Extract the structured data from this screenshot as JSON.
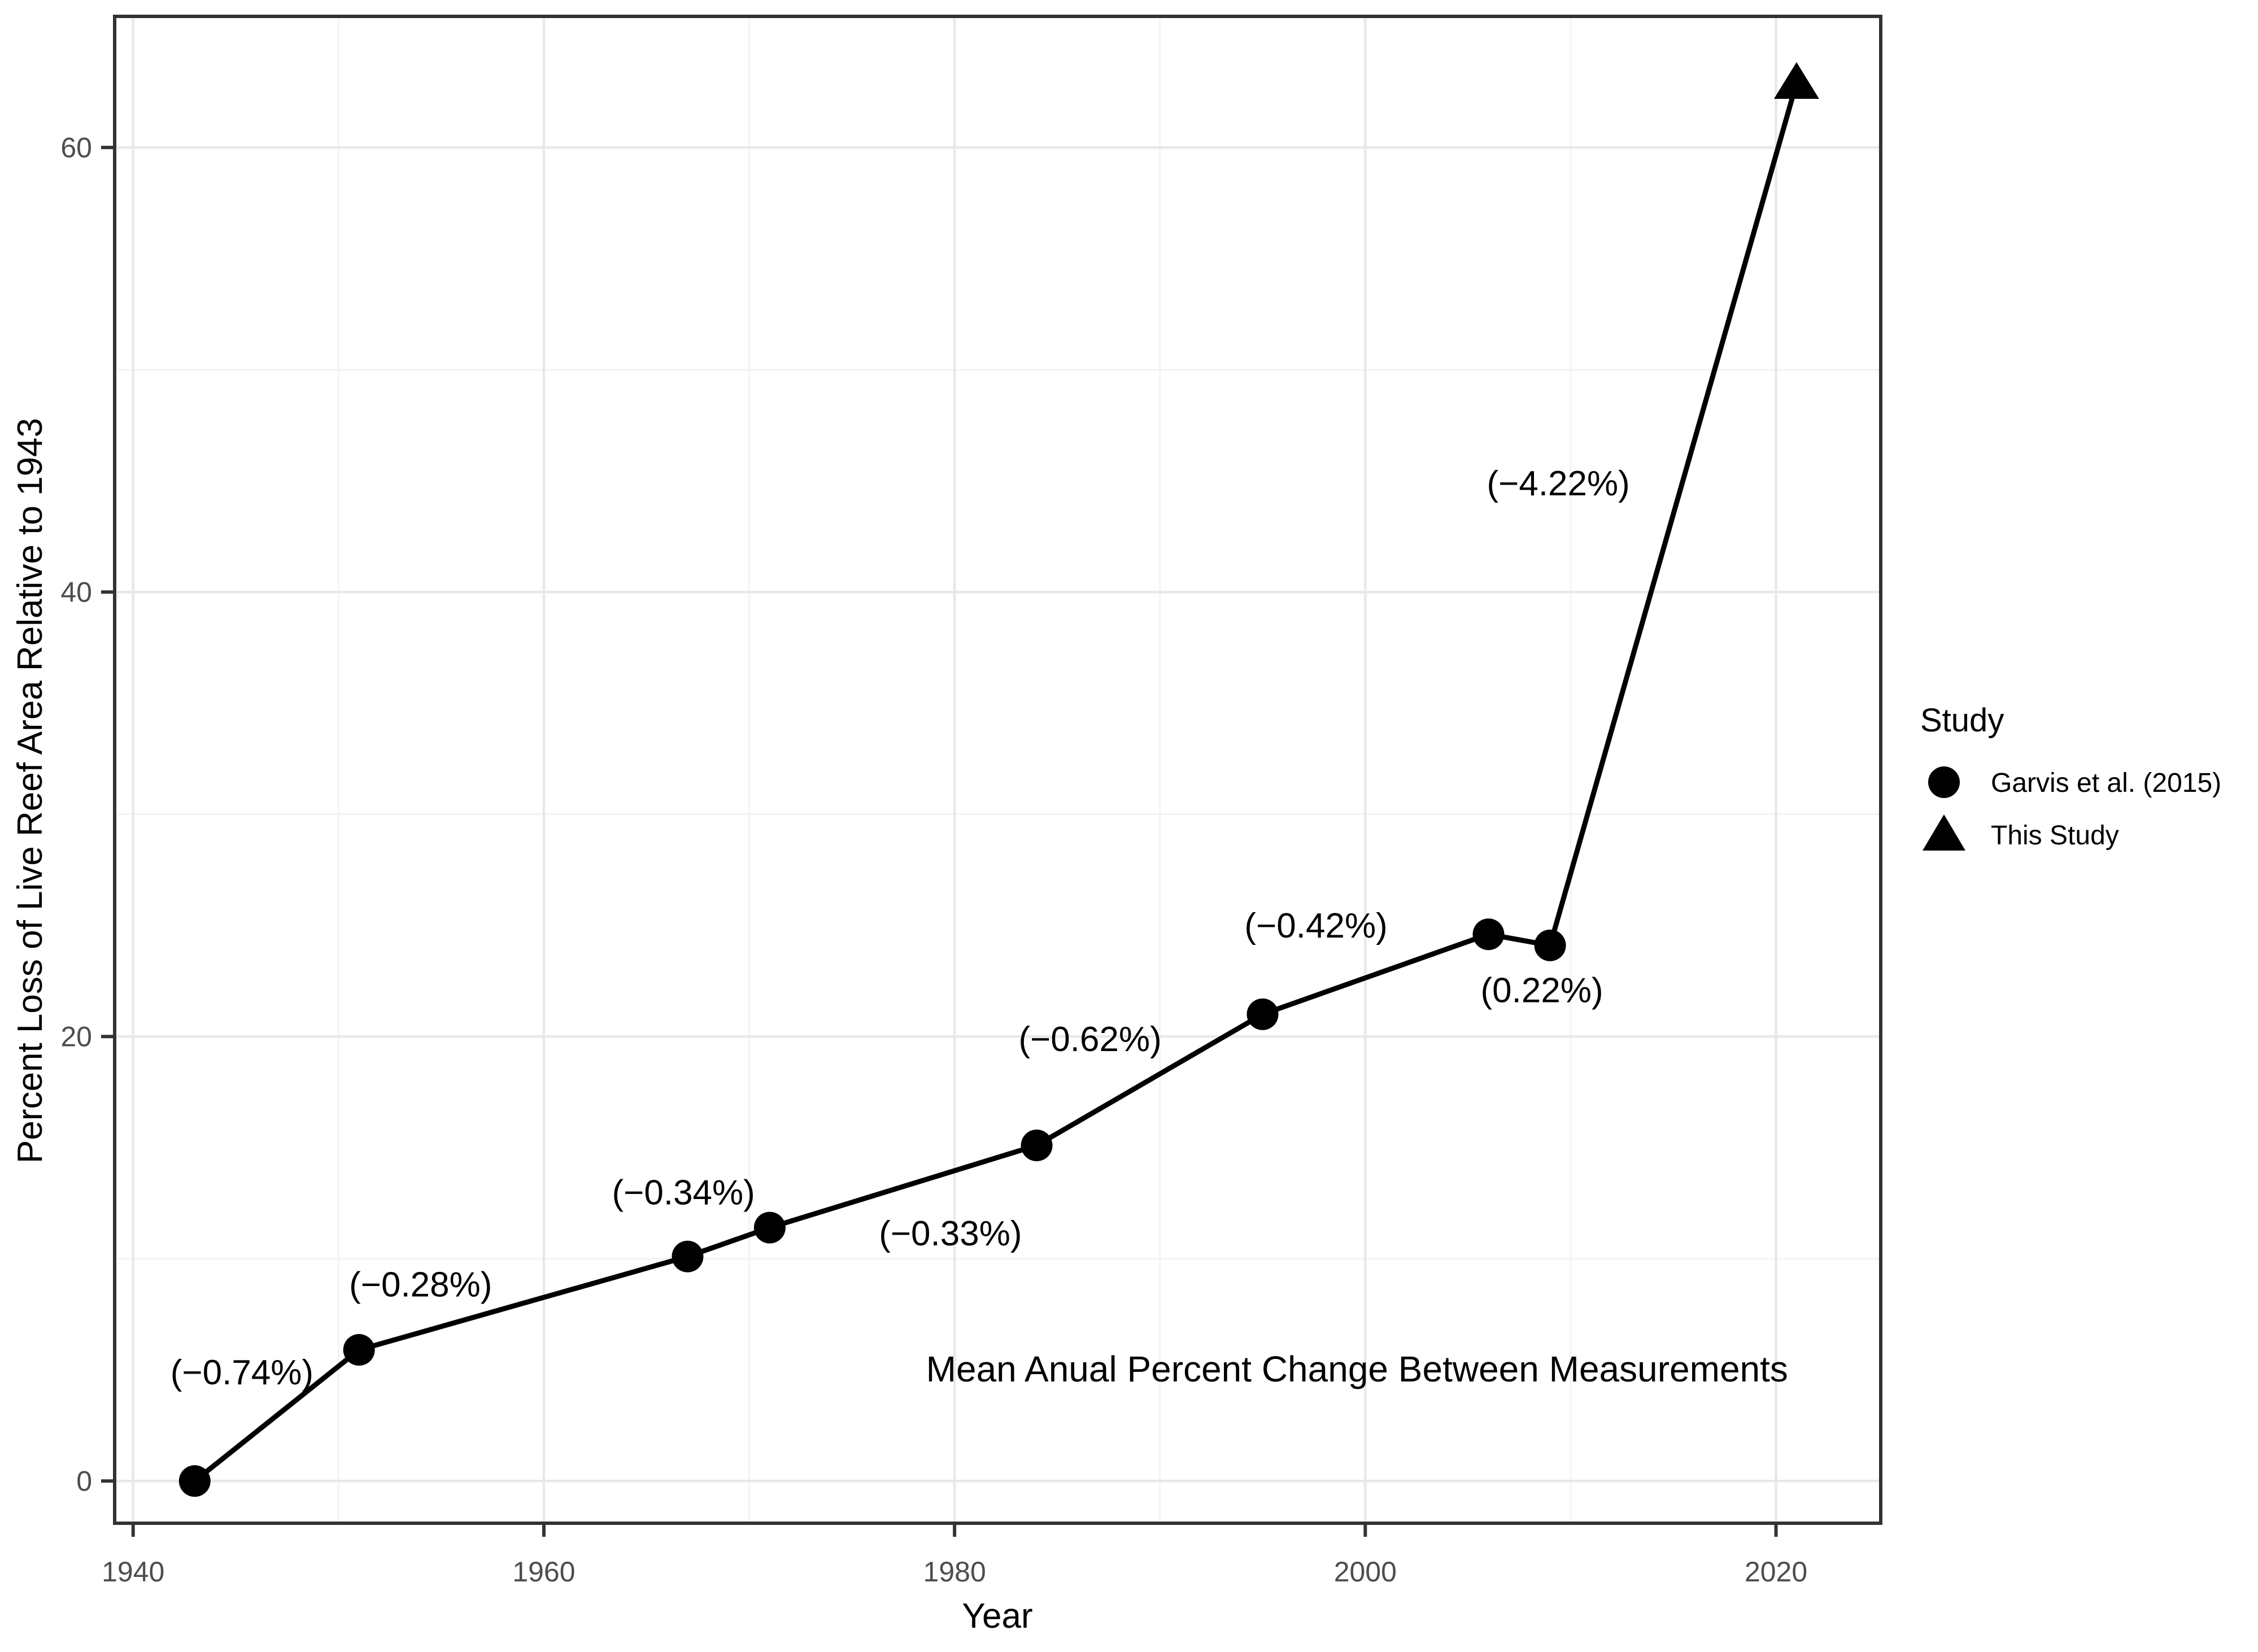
{
  "chart_data": {
    "type": "line",
    "title": "",
    "xlabel": "Year",
    "ylabel": "Percent Loss of Live Reef Area Relative to 1943",
    "xlim": [
      1939.1,
      2025.1
    ],
    "ylim": [
      -1.9,
      65.9
    ],
    "x_ticks": [
      1940,
      1960,
      1980,
      2000,
      2020
    ],
    "y_ticks": [
      0,
      20,
      40,
      60
    ],
    "x_minor_gridlines": [
      1950,
      1970,
      1990,
      2010
    ],
    "y_minor_gridlines": [
      10,
      30,
      50
    ],
    "grid": "on",
    "legend_position": "right",
    "series": [
      {
        "name": "Garvis et al. (2015)",
        "marker": "circle",
        "points": [
          {
            "year": 1943,
            "value": 0
          },
          {
            "year": 1951,
            "value": 5.9
          },
          {
            "year": 1967,
            "value": 10.1
          },
          {
            "year": 1971,
            "value": 11.4
          },
          {
            "year": 1984,
            "value": 15.1
          },
          {
            "year": 1995,
            "value": 21.0
          },
          {
            "year": 2006,
            "value": 24.6
          },
          {
            "year": 2009,
            "value": 24.1
          }
        ]
      },
      {
        "name": "This Study",
        "marker": "triangle",
        "points": [
          {
            "year": 2021,
            "value": 62.9
          }
        ]
      }
    ],
    "annotations": [
      {
        "text": "(−0.74%)",
        "year": 1945.3,
        "value": 4.9
      },
      {
        "text": "(−0.28%)",
        "year": 1954.0,
        "value": 8.85
      },
      {
        "text": "(−0.34%)",
        "year": 1966.8,
        "value": 13.0
      },
      {
        "text": "(−0.33%)",
        "year": 1979.8,
        "value": 11.15
      },
      {
        "text": "(−0.62%)",
        "year": 1986.6,
        "value": 19.9
      },
      {
        "text": "(−0.42%)",
        "year": 1997.6,
        "value": 25.0
      },
      {
        "text": "(0.22%)",
        "year": 2008.6,
        "value": 22.1
      },
      {
        "text": "(−4.22%)",
        "year": 2009.4,
        "value": 44.9
      }
    ],
    "caption": {
      "text": "Mean Anual Percent Change Between Measurements",
      "year": 1999.6,
      "value": 5.05
    },
    "colors": {
      "line": "#000000",
      "marker": "#000000",
      "grid_major": "#E8E8E8",
      "grid_minor": "#F3F3F3",
      "panel_border": "#333333",
      "tick_mark": "#333333",
      "tick_label": "#4D4D4D",
      "axis_title": "#000000",
      "annotation": "#000000",
      "background": "#FFFFFF"
    }
  },
  "legend": {
    "title": "Study",
    "items": [
      {
        "label": "Garvis et al. (2015)",
        "marker": "circle"
      },
      {
        "label": "This Study",
        "marker": "triangle"
      }
    ]
  }
}
